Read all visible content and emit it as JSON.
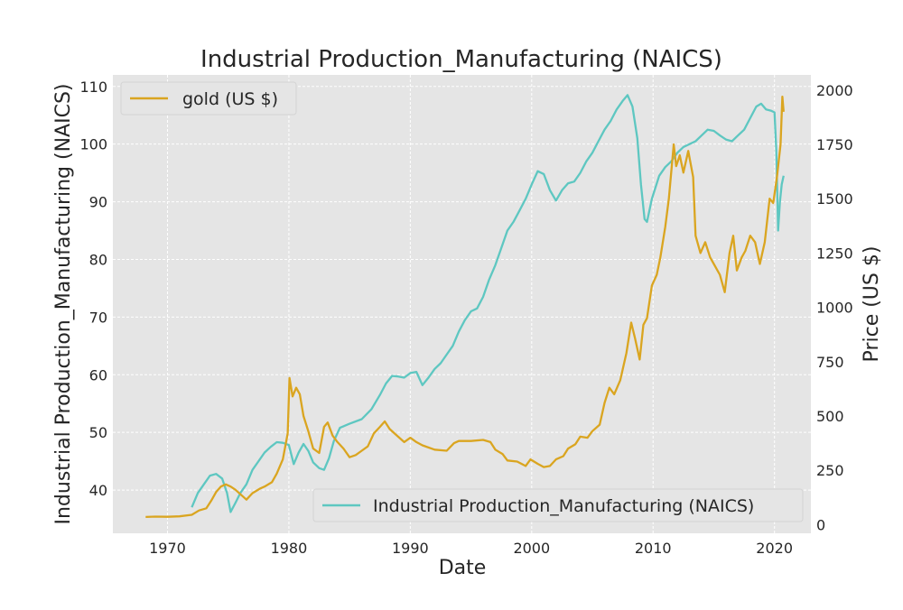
{
  "chart_data": {
    "type": "line",
    "title": "Industrial Production_Manufacturing (NAICS)",
    "xlabel": "Date",
    "ylabel_left": "Industrial Production_Manufacturing (NAICS)",
    "ylabel_right": "Price (US $)",
    "xlim": [
      1965.5,
      2023.0
    ],
    "ylim_left": [
      32.5,
      112.0
    ],
    "ylim_right": [
      -40,
      2070
    ],
    "x_ticks": [
      1970,
      1980,
      1990,
      2000,
      2010,
      2020
    ],
    "y_ticks_left": [
      40,
      50,
      60,
      70,
      80,
      90,
      100,
      110
    ],
    "y_ticks_right": [
      0,
      250,
      500,
      750,
      1000,
      1250,
      1500,
      1750,
      2000
    ],
    "grid": true,
    "series": [
      {
        "name": "gold (US $)",
        "axis": "right",
        "color": "#DAA520",
        "legend_position": "upper left",
        "points": [
          [
            1968.2,
            35
          ],
          [
            1969.0,
            37
          ],
          [
            1970.0,
            36
          ],
          [
            1971.0,
            38
          ],
          [
            1972.0,
            45
          ],
          [
            1972.6,
            65
          ],
          [
            1973.2,
            75
          ],
          [
            1973.6,
            110
          ],
          [
            1974.0,
            150
          ],
          [
            1974.4,
            175
          ],
          [
            1974.8,
            185
          ],
          [
            1975.2,
            175
          ],
          [
            1975.6,
            160
          ],
          [
            1976.0,
            140
          ],
          [
            1976.5,
            115
          ],
          [
            1977.0,
            145
          ],
          [
            1977.6,
            165
          ],
          [
            1978.0,
            175
          ],
          [
            1978.6,
            195
          ],
          [
            1979.0,
            235
          ],
          [
            1979.5,
            300
          ],
          [
            1979.9,
            420
          ],
          [
            1980.05,
            675
          ],
          [
            1980.3,
            590
          ],
          [
            1980.6,
            630
          ],
          [
            1980.9,
            600
          ],
          [
            1981.2,
            500
          ],
          [
            1981.6,
            430
          ],
          [
            1982.0,
            350
          ],
          [
            1982.5,
            330
          ],
          [
            1982.9,
            450
          ],
          [
            1983.2,
            470
          ],
          [
            1983.6,
            410
          ],
          [
            1984.0,
            380
          ],
          [
            1984.5,
            350
          ],
          [
            1985.0,
            310
          ],
          [
            1985.5,
            320
          ],
          [
            1986.0,
            340
          ],
          [
            1986.5,
            360
          ],
          [
            1987.0,
            420
          ],
          [
            1987.5,
            450
          ],
          [
            1987.9,
            475
          ],
          [
            1988.3,
            440
          ],
          [
            1988.8,
            415
          ],
          [
            1989.5,
            380
          ],
          [
            1990.0,
            400
          ],
          [
            1990.5,
            380
          ],
          [
            1991.0,
            365
          ],
          [
            1992.0,
            345
          ],
          [
            1993.0,
            340
          ],
          [
            1993.6,
            375
          ],
          [
            1994.0,
            385
          ],
          [
            1995.0,
            385
          ],
          [
            1996.0,
            390
          ],
          [
            1996.6,
            380
          ],
          [
            1997.0,
            345
          ],
          [
            1997.6,
            325
          ],
          [
            1998.0,
            295
          ],
          [
            1998.8,
            290
          ],
          [
            1999.5,
            270
          ],
          [
            1999.9,
            300
          ],
          [
            2000.5,
            280
          ],
          [
            2001.0,
            265
          ],
          [
            2001.5,
            270
          ],
          [
            2002.0,
            300
          ],
          [
            2002.6,
            315
          ],
          [
            2003.0,
            350
          ],
          [
            2003.6,
            370
          ],
          [
            2004.0,
            405
          ],
          [
            2004.6,
            400
          ],
          [
            2005.0,
            430
          ],
          [
            2005.6,
            460
          ],
          [
            2006.0,
            560
          ],
          [
            2006.4,
            630
          ],
          [
            2006.8,
            600
          ],
          [
            2007.3,
            665
          ],
          [
            2007.8,
            790
          ],
          [
            2008.2,
            930
          ],
          [
            2008.5,
            860
          ],
          [
            2008.9,
            760
          ],
          [
            2009.2,
            920
          ],
          [
            2009.5,
            950
          ],
          [
            2009.9,
            1100
          ],
          [
            2010.3,
            1150
          ],
          [
            2010.6,
            1230
          ],
          [
            2011.0,
            1370
          ],
          [
            2011.3,
            1500
          ],
          [
            2011.7,
            1750
          ],
          [
            2011.9,
            1650
          ],
          [
            2012.2,
            1700
          ],
          [
            2012.5,
            1620
          ],
          [
            2012.9,
            1720
          ],
          [
            2013.3,
            1600
          ],
          [
            2013.5,
            1330
          ],
          [
            2013.9,
            1250
          ],
          [
            2014.3,
            1300
          ],
          [
            2014.7,
            1230
          ],
          [
            2015.0,
            1200
          ],
          [
            2015.5,
            1150
          ],
          [
            2015.9,
            1070
          ],
          [
            2016.3,
            1250
          ],
          [
            2016.6,
            1330
          ],
          [
            2016.9,
            1170
          ],
          [
            2017.3,
            1230
          ],
          [
            2017.6,
            1260
          ],
          [
            2018.0,
            1330
          ],
          [
            2018.4,
            1300
          ],
          [
            2018.8,
            1200
          ],
          [
            2019.2,
            1300
          ],
          [
            2019.6,
            1500
          ],
          [
            2019.9,
            1480
          ],
          [
            2020.2,
            1600
          ],
          [
            2020.5,
            1750
          ],
          [
            2020.65,
            1970
          ],
          [
            2020.75,
            1900
          ]
        ]
      },
      {
        "name": "Industrial Production_Manufacturing (NAICS)",
        "axis": "left",
        "color": "#5EC7C1",
        "legend_position": "lower right",
        "points": [
          [
            1972.0,
            37
          ],
          [
            1972.5,
            39.5
          ],
          [
            1973.0,
            41
          ],
          [
            1973.5,
            42.5
          ],
          [
            1974.0,
            42.8
          ],
          [
            1974.5,
            42
          ],
          [
            1974.9,
            39.5
          ],
          [
            1975.2,
            36.2
          ],
          [
            1975.6,
            37.8
          ],
          [
            1976.0,
            39.5
          ],
          [
            1976.5,
            41
          ],
          [
            1977.0,
            43.5
          ],
          [
            1977.5,
            45
          ],
          [
            1978.0,
            46.5
          ],
          [
            1978.5,
            47.5
          ],
          [
            1979.0,
            48.3
          ],
          [
            1979.5,
            48.2
          ],
          [
            1980.0,
            47.8
          ],
          [
            1980.4,
            44.5
          ],
          [
            1980.8,
            46.5
          ],
          [
            1981.2,
            48
          ],
          [
            1981.6,
            46.8
          ],
          [
            1982.0,
            44.8
          ],
          [
            1982.5,
            43.8
          ],
          [
            1982.9,
            43.5
          ],
          [
            1983.3,
            45.5
          ],
          [
            1983.7,
            48.5
          ],
          [
            1984.2,
            50.8
          ],
          [
            1985.0,
            51.5
          ],
          [
            1986.0,
            52.3
          ],
          [
            1986.8,
            54
          ],
          [
            1987.5,
            56.5
          ],
          [
            1988.0,
            58.5
          ],
          [
            1988.5,
            59.8
          ],
          [
            1989.0,
            59.7
          ],
          [
            1989.5,
            59.5
          ],
          [
            1990.0,
            60.3
          ],
          [
            1990.5,
            60.5
          ],
          [
            1991.0,
            58.2
          ],
          [
            1991.5,
            59.5
          ],
          [
            1992.0,
            61
          ],
          [
            1992.5,
            62
          ],
          [
            1993.0,
            63.5
          ],
          [
            1993.5,
            65
          ],
          [
            1994.0,
            67.5
          ],
          [
            1994.5,
            69.5
          ],
          [
            1995.0,
            71
          ],
          [
            1995.5,
            71.5
          ],
          [
            1996.0,
            73.5
          ],
          [
            1996.5,
            76.5
          ],
          [
            1997.0,
            79
          ],
          [
            1997.5,
            82
          ],
          [
            1998.0,
            85
          ],
          [
            1998.5,
            86.5
          ],
          [
            1999.0,
            88.5
          ],
          [
            1999.5,
            90.5
          ],
          [
            2000.0,
            93
          ],
          [
            2000.5,
            95.3
          ],
          [
            2001.0,
            94.8
          ],
          [
            2001.5,
            92
          ],
          [
            2002.0,
            90.2
          ],
          [
            2002.5,
            92
          ],
          [
            2003.0,
            93.2
          ],
          [
            2003.5,
            93.5
          ],
          [
            2004.0,
            95
          ],
          [
            2004.5,
            97
          ],
          [
            2005.0,
            98.5
          ],
          [
            2005.5,
            100.5
          ],
          [
            2006.0,
            102.5
          ],
          [
            2006.5,
            104
          ],
          [
            2007.0,
            106
          ],
          [
            2007.5,
            107.5
          ],
          [
            2007.9,
            108.5
          ],
          [
            2008.3,
            106.5
          ],
          [
            2008.7,
            101
          ],
          [
            2009.0,
            93
          ],
          [
            2009.3,
            87
          ],
          [
            2009.5,
            86.5
          ],
          [
            2009.9,
            90.5
          ],
          [
            2010.5,
            94.5
          ],
          [
            2011.0,
            96
          ],
          [
            2011.5,
            97
          ],
          [
            2012.0,
            98.5
          ],
          [
            2012.5,
            99.5
          ],
          [
            2013.0,
            100
          ],
          [
            2013.5,
            100.5
          ],
          [
            2014.0,
            101.5
          ],
          [
            2014.5,
            102.5
          ],
          [
            2015.0,
            102.3
          ],
          [
            2015.5,
            101.5
          ],
          [
            2016.0,
            100.8
          ],
          [
            2016.5,
            100.5
          ],
          [
            2017.0,
            101.5
          ],
          [
            2017.5,
            102.5
          ],
          [
            2018.0,
            104.5
          ],
          [
            2018.5,
            106.5
          ],
          [
            2018.9,
            107
          ],
          [
            2019.3,
            106
          ],
          [
            2019.7,
            105.8
          ],
          [
            2020.0,
            105.5
          ],
          [
            2020.15,
            99
          ],
          [
            2020.3,
            85
          ],
          [
            2020.45,
            90
          ],
          [
            2020.6,
            93
          ],
          [
            2020.75,
            94.5
          ]
        ]
      }
    ]
  }
}
